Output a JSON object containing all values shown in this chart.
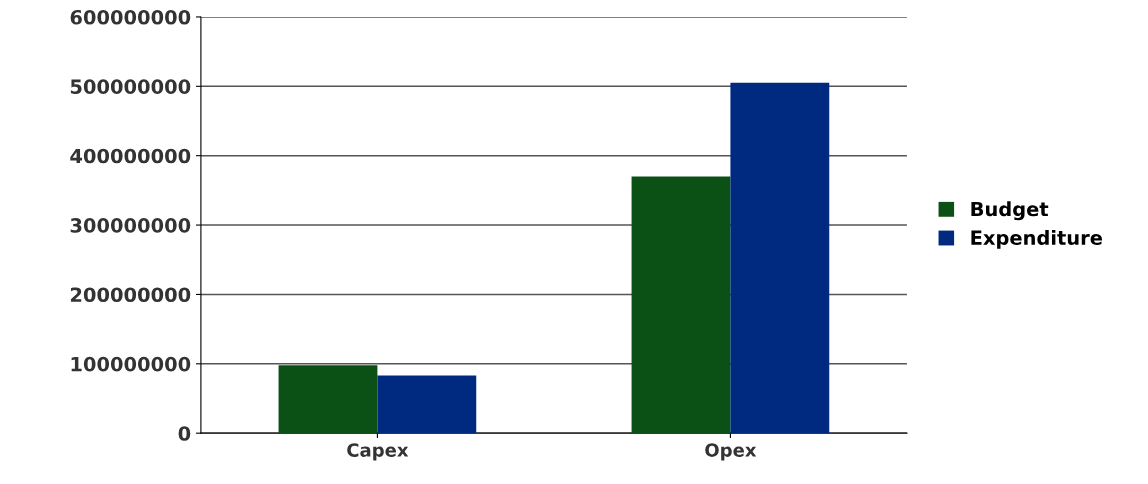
{
  "chart_data": {
    "type": "bar",
    "categories": [
      "Capex",
      "Opex"
    ],
    "series": [
      {
        "name": "Budget",
        "color": "#0b5014",
        "values": [
          98000000,
          370000000
        ]
      },
      {
        "name": "Expenditure",
        "color": "#002a80",
        "values": [
          83000000,
          505000000
        ]
      }
    ],
    "ylim": [
      0,
      600000000
    ],
    "yticks": [
      0,
      100000000,
      200000000,
      300000000,
      400000000,
      500000000,
      600000000
    ],
    "grid": "y",
    "legend": "right"
  }
}
